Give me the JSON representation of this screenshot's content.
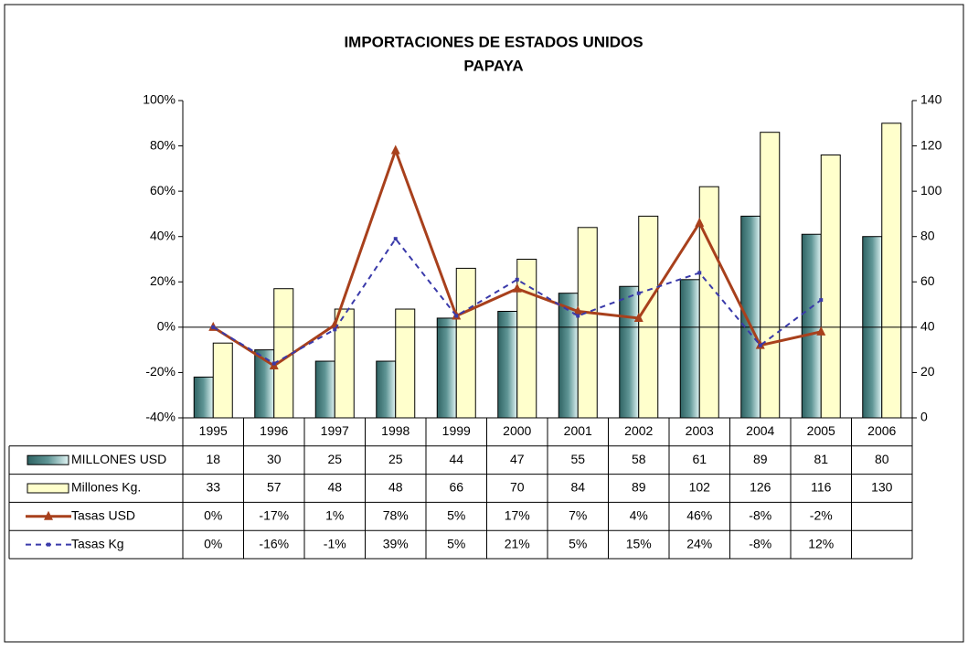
{
  "chart_data": {
    "type": "bar-line",
    "title": "IMPORTACIONES DE ESTADOS UNIDOS",
    "subtitle": "PAPAYA",
    "categories": [
      "1995",
      "1996",
      "1997",
      "1998",
      "1999",
      "2000",
      "2001",
      "2002",
      "2003",
      "2004",
      "2005",
      "2006"
    ],
    "ylim": [
      -40,
      100
    ],
    "yticks": [
      {
        "value": -40,
        "label": "-40%"
      },
      {
        "value": -20,
        "label": "-20%"
      },
      {
        "value": 0,
        "label": "0%"
      },
      {
        "value": 20,
        "label": "20%"
      },
      {
        "value": 40,
        "label": "40%"
      },
      {
        "value": 60,
        "label": "60%"
      },
      {
        "value": 80,
        "label": "80%"
      },
      {
        "value": 100,
        "label": "100%"
      }
    ],
    "y2lim": [
      0,
      140
    ],
    "y2ticks": [
      0,
      20,
      40,
      60,
      80,
      100,
      120,
      140
    ],
    "series": [
      {
        "name": "MILLONES USD",
        "type": "bar",
        "axis": "y2",
        "color": "#5f9595",
        "values": [
          18,
          30,
          25,
          25,
          44,
          47,
          55,
          58,
          61,
          89,
          81,
          80
        ]
      },
      {
        "name": "Millones Kg.",
        "type": "bar",
        "axis": "y2",
        "color": "#ffffcc",
        "values": [
          33,
          57,
          48,
          48,
          66,
          70,
          84,
          89,
          102,
          126,
          116,
          130
        ]
      },
      {
        "name": "Tasas USD",
        "type": "line",
        "color": "#a8401c",
        "values": [
          0,
          -17,
          1,
          78,
          5,
          17,
          7,
          4,
          46,
          -8,
          -2,
          null
        ],
        "value_labels": [
          "0%",
          "-17%",
          "1%",
          "78%",
          "5%",
          "17%",
          "7%",
          "4%",
          "46%",
          "-8%",
          "-2%",
          null
        ]
      },
      {
        "name": "Tasas Kg",
        "type": "line",
        "color": "#3a3aaa",
        "dashed": true,
        "values": [
          0,
          -16,
          -1,
          39,
          5,
          21,
          5,
          15,
          24,
          -8,
          12,
          null
        ],
        "value_labels": [
          "0%",
          "-16%",
          "-1%",
          "39%",
          "5%",
          "21%",
          "5%",
          "15%",
          "24%",
          "-8%",
          "12%",
          null
        ]
      }
    ]
  }
}
